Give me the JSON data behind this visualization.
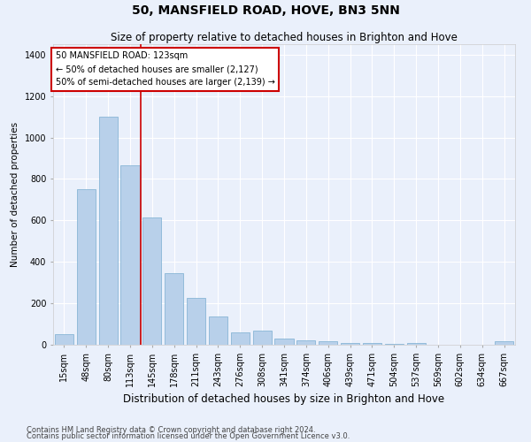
{
  "title": "50, MANSFIELD ROAD, HOVE, BN3 5NN",
  "subtitle": "Size of property relative to detached houses in Brighton and Hove",
  "xlabel": "Distribution of detached houses by size in Brighton and Hove",
  "ylabel": "Number of detached properties",
  "footnote1": "Contains HM Land Registry data © Crown copyright and database right 2024.",
  "footnote2": "Contains public sector information licensed under the Open Government Licence v3.0.",
  "categories": [
    "15sqm",
    "48sqm",
    "80sqm",
    "113sqm",
    "145sqm",
    "178sqm",
    "211sqm",
    "243sqm",
    "276sqm",
    "308sqm",
    "341sqm",
    "374sqm",
    "406sqm",
    "439sqm",
    "471sqm",
    "504sqm",
    "537sqm",
    "569sqm",
    "602sqm",
    "634sqm",
    "667sqm"
  ],
  "bar_heights": [
    50,
    750,
    1100,
    865,
    615,
    345,
    225,
    135,
    60,
    70,
    30,
    20,
    15,
    10,
    10,
    5,
    10,
    0,
    0,
    0,
    15
  ],
  "bar_color": "#b8d0ea",
  "bar_edge_color": "#7aaed0",
  "vline_position": 3.5,
  "vline_color": "#cc0000",
  "annotation_line1": "50 MANSFIELD ROAD: 123sqm",
  "annotation_line2": "← 50% of detached houses are smaller (2,127)",
  "annotation_line3": "50% of semi-detached houses are larger (2,139) →",
  "yticks": [
    0,
    200,
    400,
    600,
    800,
    1000,
    1200,
    1400
  ],
  "ylim_max": 1450,
  "background_color": "#eaf0fb",
  "grid_color": "#ffffff",
  "title_fontsize": 10,
  "subtitle_fontsize": 8.5,
  "xlabel_fontsize": 8.5,
  "ylabel_fontsize": 7.5,
  "tick_fontsize": 7,
  "annot_fontsize": 7,
  "footnote_fontsize": 6
}
